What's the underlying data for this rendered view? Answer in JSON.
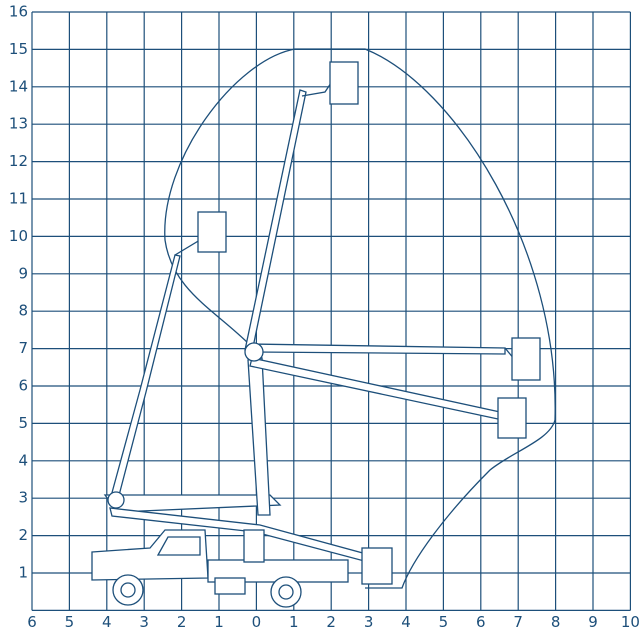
{
  "x_axis": {
    "labels": [
      "6",
      "5",
      "4",
      "3",
      "2",
      "1",
      "0",
      "1",
      "2",
      "3",
      "4",
      "5",
      "6",
      "7",
      "8",
      "9",
      "10"
    ]
  },
  "y_axis": {
    "labels": [
      "16",
      "15",
      "14",
      "13",
      "12",
      "11",
      "10",
      "9",
      "8",
      "7",
      "6",
      "5",
      "4",
      "3",
      "2",
      "1"
    ]
  }
}
